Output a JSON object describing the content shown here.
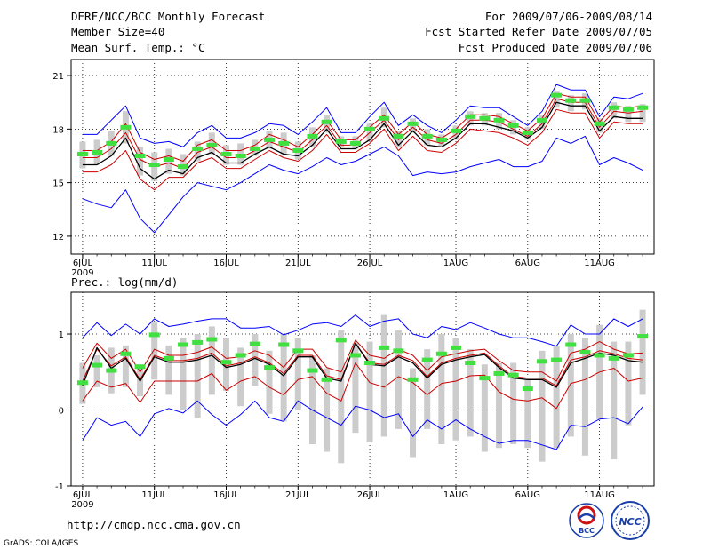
{
  "header": {
    "title": "DERF/NCC/BCC Monthly Forecast",
    "member_size": "Member Size=40",
    "variable": "Mean Surf. Temp.: °C",
    "period": "For 2009/07/06-2009/08/14",
    "fcst_started": "Fcst Started Refer Date 2009/07/05",
    "fcst_produced": "Fcst Produced Date 2009/07/06"
  },
  "footer": {
    "url": "http://cmdp.ncc.cma.gov.cn",
    "grads": "GrADS: COLA/IGES",
    "logo_bcc": "BCC",
    "logo_ncc": "NCC"
  },
  "colors": {
    "max_min": "#0000ff",
    "sd_band": "#cc0000",
    "mean": "#000000",
    "median": "#40e040",
    "box": "#cccccc",
    "grid": "#000000"
  },
  "chart_data": [
    {
      "type": "line",
      "title": "Mean Surf. Temp.: °C",
      "x_tick_labels": [
        "6JUL",
        "11JUL",
        "16JUL",
        "21JUL",
        "26JUL",
        "1AUG",
        "6AUG",
        "11AUG"
      ],
      "x_tick_days": [
        1,
        6,
        11,
        16,
        21,
        27,
        32,
        37
      ],
      "year_label": "2009",
      "days": 40,
      "ylim": [
        11,
        21.9
      ],
      "y_ticks": [
        12,
        15,
        18,
        21
      ],
      "y_tick_labels": [
        "12",
        "15",
        "18",
        "21"
      ],
      "series": [
        {
          "name": "max",
          "values": [
            17.7,
            17.7,
            18.5,
            19.3,
            17.5,
            17.2,
            17.3,
            17.0,
            17.8,
            18.2,
            17.5,
            17.5,
            17.8,
            18.3,
            18.2,
            17.7,
            18.4,
            19.2,
            17.8,
            17.8,
            18.7,
            19.5,
            18.2,
            18.8,
            18.2,
            17.8,
            18.5,
            19.3,
            19.2,
            19.2,
            18.7,
            18.2,
            19.0,
            20.5,
            20.2,
            20.2,
            18.7,
            19.8,
            19.7,
            20.0
          ]
        },
        {
          "name": "sd_upper",
          "values": [
            16.8,
            16.8,
            17.3,
            18.3,
            16.7,
            16.3,
            16.5,
            16.2,
            17.1,
            17.4,
            16.8,
            16.8,
            17.1,
            17.7,
            17.4,
            17.0,
            17.7,
            18.5,
            17.4,
            17.4,
            18.1,
            18.8,
            17.7,
            18.4,
            17.7,
            17.5,
            18.0,
            18.8,
            18.8,
            18.7,
            18.3,
            17.9,
            18.6,
            20.0,
            19.8,
            19.8,
            18.4,
            19.3,
            19.2,
            19.3
          ]
        },
        {
          "name": "mean",
          "values": [
            16.4,
            16.4,
            16.9,
            17.8,
            16.3,
            15.9,
            16.1,
            15.8,
            16.7,
            17.0,
            16.4,
            16.4,
            16.8,
            17.3,
            17.0,
            16.7,
            17.4,
            18.2,
            17.1,
            17.1,
            17.8,
            18.5,
            17.4,
            18.1,
            17.4,
            17.2,
            17.7,
            18.5,
            18.5,
            18.4,
            18.0,
            17.6,
            18.3,
            19.7,
            19.5,
            19.5,
            18.1,
            19.0,
            18.9,
            19.0
          ]
        },
        {
          "name": "median",
          "values": [
            16.6,
            16.7,
            17.2,
            18.1,
            16.5,
            16.0,
            16.3,
            15.9,
            16.9,
            17.1,
            16.6,
            16.5,
            16.9,
            17.4,
            17.2,
            16.8,
            17.6,
            18.4,
            17.3,
            17.2,
            18.0,
            18.6,
            17.6,
            18.3,
            17.6,
            17.4,
            17.9,
            18.7,
            18.6,
            18.5,
            18.2,
            17.8,
            18.5,
            19.9,
            19.6,
            19.6,
            18.3,
            19.2,
            19.1,
            19.2
          ]
        },
        {
          "name": "black",
          "values": [
            16.0,
            16.0,
            16.5,
            17.5,
            15.8,
            15.2,
            15.7,
            15.5,
            16.4,
            16.7,
            16.1,
            16.1,
            16.6,
            17.0,
            16.6,
            16.5,
            17.1,
            18.0,
            16.9,
            16.9,
            17.4,
            18.3,
            17.1,
            17.9,
            17.1,
            17.0,
            17.5,
            18.3,
            18.3,
            18.1,
            17.9,
            17.5,
            18.1,
            19.5,
            19.3,
            19.3,
            17.9,
            18.7,
            18.6,
            18.6
          ]
        },
        {
          "name": "sd_lower",
          "values": [
            15.6,
            15.6,
            16.0,
            16.8,
            15.2,
            14.6,
            15.3,
            15.3,
            16.1,
            16.4,
            15.8,
            15.8,
            16.3,
            16.8,
            16.4,
            16.2,
            16.8,
            17.7,
            16.7,
            16.7,
            17.2,
            18.0,
            16.8,
            17.6,
            16.8,
            16.7,
            17.2,
            18.0,
            17.9,
            17.8,
            17.5,
            17.1,
            17.8,
            19.1,
            18.9,
            18.9,
            17.5,
            18.4,
            18.3,
            18.3
          ]
        },
        {
          "name": "min",
          "values": [
            14.1,
            13.8,
            13.6,
            14.6,
            13.0,
            12.2,
            13.2,
            14.2,
            15.0,
            14.8,
            14.6,
            15.0,
            15.5,
            16.0,
            15.7,
            15.5,
            15.9,
            16.4,
            16.0,
            16.2,
            16.6,
            17.0,
            16.5,
            15.4,
            15.6,
            15.5,
            15.6,
            15.9,
            16.1,
            16.3,
            15.9,
            15.9,
            16.2,
            17.5,
            17.2,
            17.6,
            16.0,
            16.4,
            16.1,
            15.7
          ]
        },
        {
          "name": "box_high",
          "values": [
            17.3,
            17.4,
            17.9,
            19.0,
            17.0,
            16.7,
            16.9,
            16.6,
            17.3,
            17.8,
            17.1,
            17.2,
            17.4,
            17.9,
            17.8,
            17.3,
            18.1,
            18.8,
            17.6,
            17.6,
            18.3,
            19.2,
            17.9,
            18.6,
            18.0,
            17.7,
            18.2,
            19.0,
            18.9,
            18.9,
            18.5,
            18.1,
            18.8,
            20.1,
            19.9,
            20.0,
            18.6,
            19.5,
            19.3,
            19.4
          ]
        },
        {
          "name": "box_low",
          "values": [
            15.8,
            16.0,
            16.5,
            17.2,
            15.4,
            15.1,
            15.5,
            15.4,
            16.2,
            16.6,
            16.0,
            16.0,
            16.5,
            16.9,
            16.6,
            16.3,
            17.0,
            17.8,
            17.0,
            16.9,
            17.3,
            18.1,
            17.0,
            17.8,
            17.1,
            17.0,
            17.4,
            18.2,
            18.2,
            18.0,
            17.7,
            17.4,
            18.0,
            19.2,
            19.0,
            19.1,
            17.8,
            18.6,
            18.4,
            18.4
          ]
        }
      ]
    },
    {
      "type": "line",
      "title": "Prec.: log(mm/d)",
      "x_tick_labels": [
        "6JUL",
        "11JUL",
        "16JUL",
        "21JUL",
        "26JUL",
        "1AUG",
        "6AUG",
        "11AUG"
      ],
      "x_tick_days": [
        1,
        6,
        11,
        16,
        21,
        27,
        32,
        37
      ],
      "year_label": "2009",
      "days": 40,
      "ylim": [
        -1,
        1.55
      ],
      "y_ticks": [
        -1,
        0,
        1
      ],
      "y_tick_labels": [
        "-1",
        "0",
        "1"
      ],
      "series": [
        {
          "name": "max",
          "values": [
            0.95,
            1.15,
            0.98,
            1.13,
            1.0,
            1.2,
            1.1,
            1.13,
            1.17,
            1.2,
            1.2,
            1.08,
            1.08,
            1.1,
            0.99,
            1.05,
            1.13,
            1.15,
            1.1,
            1.25,
            1.1,
            1.17,
            1.2,
            1.0,
            0.95,
            1.1,
            1.06,
            1.15,
            1.08,
            1.0,
            0.95,
            0.95,
            0.9,
            0.84,
            1.12,
            1.0,
            1.0,
            1.2,
            1.1,
            1.2
          ]
        },
        {
          "name": "sd_upper",
          "values": [
            0.55,
            0.88,
            0.68,
            0.8,
            0.5,
            0.8,
            0.72,
            0.72,
            0.76,
            0.83,
            0.68,
            0.7,
            0.78,
            0.72,
            0.56,
            0.8,
            0.8,
            0.56,
            0.5,
            0.92,
            0.72,
            0.68,
            0.8,
            0.72,
            0.52,
            0.7,
            0.74,
            0.78,
            0.8,
            0.65,
            0.52,
            0.5,
            0.5,
            0.38,
            0.75,
            0.8,
            0.9,
            0.8,
            0.74,
            0.75
          ]
        },
        {
          "name": "mean",
          "values": [
            0.38,
            0.8,
            0.58,
            0.7,
            0.4,
            0.72,
            0.65,
            0.65,
            0.68,
            0.75,
            0.58,
            0.62,
            0.7,
            0.62,
            0.48,
            0.72,
            0.72,
            0.45,
            0.4,
            0.88,
            0.62,
            0.6,
            0.72,
            0.65,
            0.44,
            0.62,
            0.68,
            0.72,
            0.75,
            0.58,
            0.44,
            0.42,
            0.42,
            0.32,
            0.66,
            0.7,
            0.78,
            0.74,
            0.68,
            0.66
          ]
        },
        {
          "name": "median",
          "values": [
            0.36,
            0.59,
            0.52,
            0.74,
            0.57,
            0.99,
            0.68,
            0.86,
            0.89,
            0.93,
            0.63,
            0.72,
            0.87,
            0.56,
            0.86,
            0.78,
            0.52,
            0.4,
            0.92,
            0.72,
            0.62,
            0.82,
            0.78,
            0.4,
            0.66,
            0.74,
            0.82,
            0.62,
            0.42,
            0.48,
            0.46,
            0.28,
            0.64,
            0.66,
            0.86,
            0.76,
            0.72,
            0.68,
            0.72,
            0.97
          ]
        },
        {
          "name": "black",
          "values": [
            0.32,
            0.82,
            0.55,
            0.68,
            0.38,
            0.7,
            0.63,
            0.63,
            0.66,
            0.72,
            0.56,
            0.6,
            0.68,
            0.6,
            0.45,
            0.7,
            0.7,
            0.42,
            0.38,
            0.88,
            0.6,
            0.58,
            0.7,
            0.62,
            0.42,
            0.6,
            0.66,
            0.7,
            0.73,
            0.56,
            0.42,
            0.4,
            0.4,
            0.3,
            0.62,
            0.68,
            0.75,
            0.72,
            0.65,
            0.63
          ]
        },
        {
          "name": "sd_lower",
          "values": [
            0.12,
            0.38,
            0.3,
            0.35,
            0.1,
            0.38,
            0.38,
            0.38,
            0.38,
            0.48,
            0.26,
            0.38,
            0.44,
            0.3,
            0.2,
            0.4,
            0.44,
            0.22,
            0.12,
            0.62,
            0.36,
            0.3,
            0.44,
            0.36,
            0.2,
            0.35,
            0.38,
            0.45,
            0.46,
            0.24,
            0.14,
            0.12,
            0.16,
            0.02,
            0.35,
            0.4,
            0.5,
            0.55,
            0.38,
            0.42
          ]
        },
        {
          "name": "min",
          "values": [
            -0.4,
            -0.1,
            -0.2,
            -0.15,
            -0.35,
            -0.05,
            0.02,
            -0.04,
            0.12,
            -0.06,
            -0.2,
            -0.06,
            0.12,
            -0.1,
            -0.15,
            0.12,
            0.0,
            -0.1,
            -0.2,
            0.05,
            0.0,
            -0.1,
            -0.05,
            -0.35,
            -0.13,
            -0.25,
            -0.13,
            -0.25,
            -0.35,
            -0.44,
            -0.4,
            -0.4,
            -0.46,
            -0.52,
            -0.2,
            -0.22,
            -0.12,
            -0.1,
            -0.18,
            0.04
          ]
        },
        {
          "name": "box_high",
          "values": [
            0.62,
            0.72,
            0.82,
            0.85,
            0.6,
            1.15,
            0.85,
            0.95,
            1.0,
            1.1,
            0.95,
            0.82,
            1.0,
            0.78,
            1.0,
            0.95,
            0.72,
            0.55,
            1.05,
            0.88,
            0.9,
            1.25,
            1.05,
            0.55,
            0.8,
            1.0,
            0.95,
            0.8,
            0.6,
            0.62,
            0.62,
            0.4,
            0.78,
            0.85,
            1.0,
            0.95,
            1.12,
            0.9,
            0.9,
            1.32
          ]
        },
        {
          "name": "box_low",
          "values": [
            0.08,
            0.3,
            0.22,
            0.3,
            0.18,
            0.4,
            0.2,
            0.0,
            -0.1,
            0.2,
            0.25,
            0.05,
            0.32,
            -0.05,
            -0.15,
            0.0,
            -0.45,
            -0.55,
            -0.7,
            -0.3,
            -0.42,
            -0.35,
            -0.25,
            -0.62,
            -0.25,
            -0.45,
            -0.4,
            -0.35,
            -0.55,
            -0.5,
            -0.45,
            -0.5,
            -0.68,
            -0.5,
            -0.35,
            -0.6,
            -0.12,
            -0.65,
            -0.2,
            0.2
          ]
        }
      ]
    }
  ]
}
